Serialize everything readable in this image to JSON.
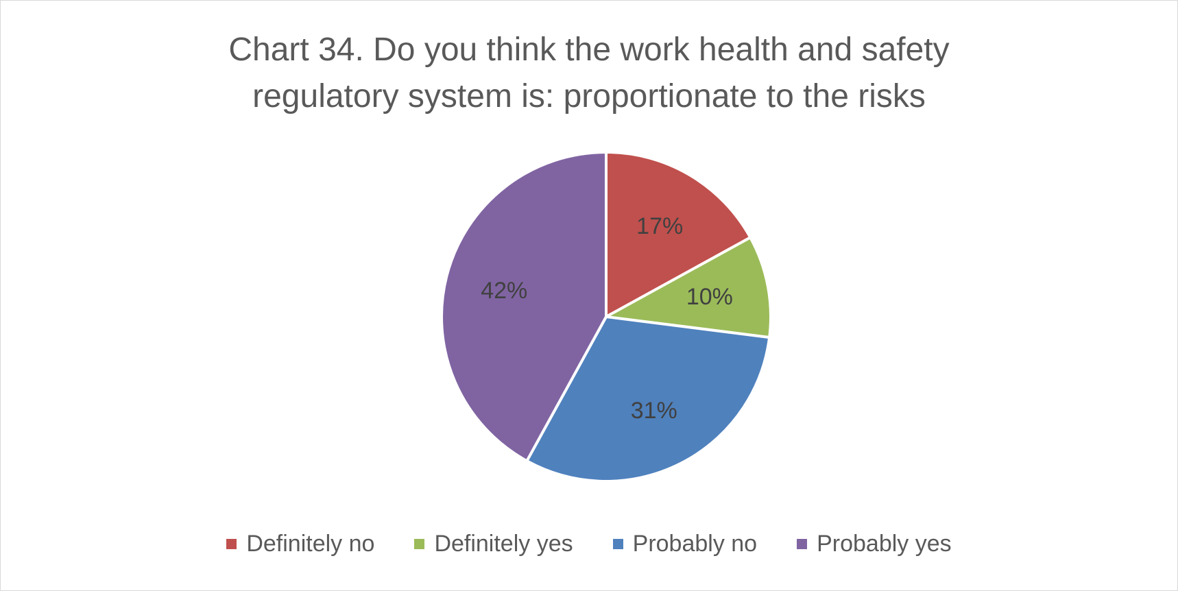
{
  "chart_data": {
    "type": "pie",
    "title_lines": [
      "Chart 34. Do you think the work health and safety",
      "regulatory system is: proportionate to the risks"
    ],
    "categories": [
      "Definitely no",
      "Definitely yes",
      "Probably no",
      "Probably yes"
    ],
    "values": [
      17,
      10,
      31,
      42
    ],
    "data_labels": [
      "17%",
      "10%",
      "31%",
      "42%"
    ],
    "colors": [
      "#c0504d",
      "#9bbb59",
      "#4f81bd",
      "#8064a2"
    ],
    "legend_position": "bottom",
    "start_angle": "12 o'clock, clockwise"
  }
}
